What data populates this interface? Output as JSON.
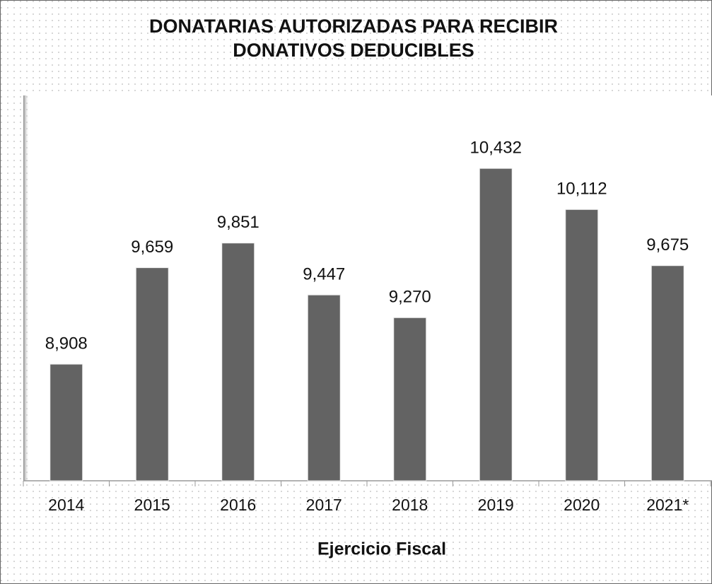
{
  "chart_data": {
    "type": "bar",
    "title": "DONATARIAS AUTORIZADAS PARA RECIBIR DONATIVOS DEDUCIBLES",
    "x_label": "Ejercicio Fiscal",
    "categories": [
      "2014",
      "2015",
      "2016",
      "2017",
      "2018",
      "2019",
      "2020",
      "2021*"
    ],
    "values": [
      8908,
      9659,
      9851,
      9447,
      9270,
      10432,
      10112,
      9675
    ],
    "value_labels": [
      "8,908",
      "9,659",
      "9,851",
      "9,447",
      "9,270",
      "10,432",
      "10,112",
      "9,675"
    ],
    "color": "#636363",
    "ylim": [
      8000,
      11000
    ]
  }
}
